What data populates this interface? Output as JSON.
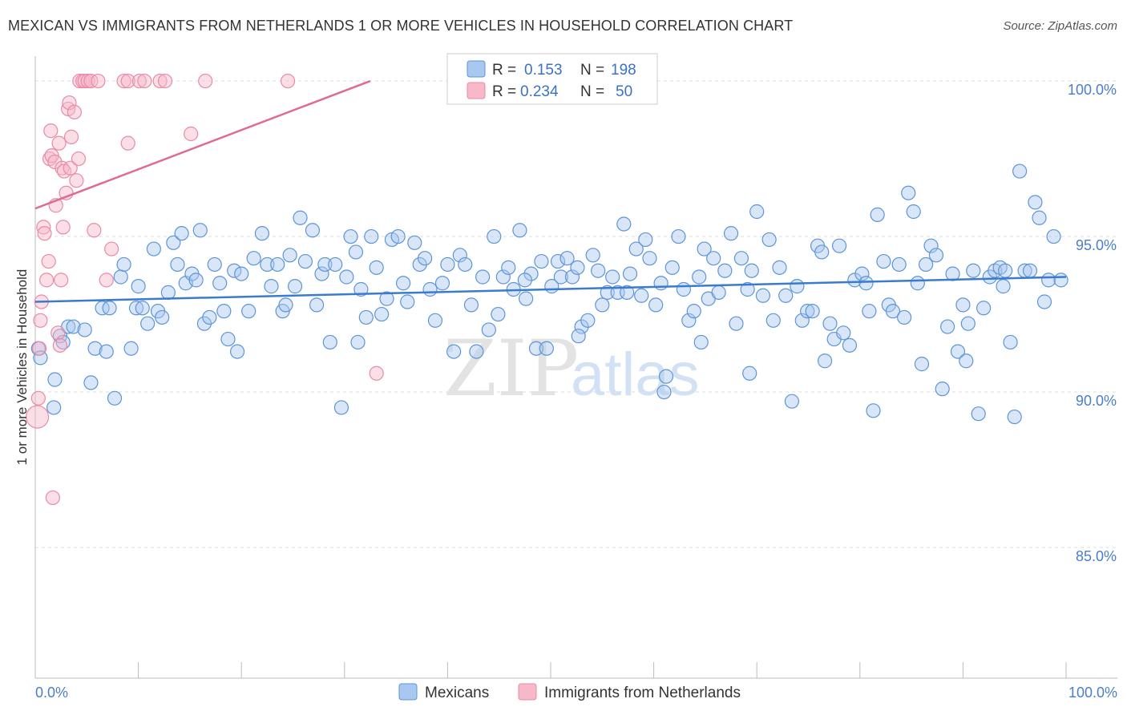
{
  "header": {
    "title": "MEXICAN VS IMMIGRANTS FROM NETHERLANDS 1 OR MORE VEHICLES IN HOUSEHOLD CORRELATION CHART",
    "source": "Source: ZipAtlas.com"
  },
  "watermark": {
    "zip": "ZIP",
    "atlas": "atlas"
  },
  "colors": {
    "blue_fill": "#a9c8ef",
    "blue_stroke": "#5e95d6",
    "blue_line": "#3a7bd0",
    "pink_fill": "#f7b8ca",
    "pink_stroke": "#e98aa6",
    "pink_line": "#e06a92",
    "tick_label": "#4a7ec9",
    "grid": "#dcdcdc"
  },
  "legend": {
    "rows": [
      {
        "r_label": "R =",
        "r_value": "0.153",
        "n_label": "N =",
        "n_value": "198"
      },
      {
        "r_label": "R =",
        "r_value": "0.234",
        "n_label": "N =",
        "n_value": "50"
      }
    ]
  },
  "bottom_legend": [
    {
      "label": "Mexicans",
      "series": "blue"
    },
    {
      "label": "Immigrants from Netherlands",
      "series": "pink"
    }
  ],
  "chart_data": {
    "type": "scatter",
    "title": "MEXICAN VS IMMIGRANTS FROM NETHERLANDS 1 OR MORE VEHICLES IN HOUSEHOLD CORRELATION CHART",
    "xlabel": "",
    "ylabel": "1 or more Vehicles in Household",
    "xlim": [
      0,
      100
    ],
    "ylim": [
      80.8,
      100.8
    ],
    "x_tick_labels": [
      "0.0%",
      "100.0%"
    ],
    "y_ticks": [
      85,
      90,
      95,
      100
    ],
    "y_tick_labels": [
      "85.0%",
      "90.0%",
      "95.0%",
      "100.0%"
    ],
    "grid": true,
    "series": [
      {
        "name": "Mexicans",
        "color": "blue",
        "r": 0.153,
        "n": 198,
        "trend": {
          "x": [
            0,
            100
          ],
          "y": [
            92.9,
            93.7
          ]
        },
        "points": [
          [
            0.3,
            91.4
          ],
          [
            0.5,
            91.1
          ],
          [
            1.8,
            89.5
          ],
          [
            1.9,
            90.4
          ],
          [
            2.4,
            91.8
          ],
          [
            2.7,
            91.6
          ],
          [
            3.2,
            92.1
          ],
          [
            3.7,
            92.1
          ],
          [
            4.8,
            92.0
          ],
          [
            5.4,
            90.3
          ],
          [
            5.8,
            91.4
          ],
          [
            6.5,
            92.7
          ],
          [
            6.9,
            91.3
          ],
          [
            7.2,
            92.7
          ],
          [
            7.7,
            89.8
          ],
          [
            8.3,
            93.7
          ],
          [
            8.6,
            94.1
          ],
          [
            9.3,
            91.4
          ],
          [
            9.8,
            92.7
          ],
          [
            10.0,
            93.4
          ],
          [
            10.4,
            92.7
          ],
          [
            10.9,
            92.2
          ],
          [
            11.5,
            94.6
          ],
          [
            11.9,
            92.6
          ],
          [
            12.3,
            92.4
          ],
          [
            12.9,
            93.2
          ],
          [
            13.4,
            94.8
          ],
          [
            13.8,
            94.1
          ],
          [
            14.2,
            95.1
          ],
          [
            14.6,
            93.5
          ],
          [
            15.2,
            93.8
          ],
          [
            15.6,
            93.6
          ],
          [
            16.0,
            95.2
          ],
          [
            16.4,
            92.2
          ],
          [
            16.9,
            92.4
          ],
          [
            17.4,
            94.1
          ],
          [
            17.9,
            93.5
          ],
          [
            18.3,
            92.6
          ],
          [
            18.7,
            91.7
          ],
          [
            19.3,
            93.9
          ],
          [
            20.0,
            93.8
          ],
          [
            20.7,
            92.6
          ],
          [
            21.2,
            94.3
          ],
          [
            22.0,
            95.1
          ],
          [
            22.5,
            94.1
          ],
          [
            22.9,
            93.4
          ],
          [
            23.5,
            94.1
          ],
          [
            24.0,
            92.6
          ],
          [
            24.3,
            92.8
          ],
          [
            24.7,
            94.4
          ],
          [
            25.2,
            93.4
          ],
          [
            25.7,
            95.6
          ],
          [
            26.2,
            94.2
          ],
          [
            26.9,
            95.2
          ],
          [
            27.3,
            92.8
          ],
          [
            27.8,
            93.8
          ],
          [
            28.1,
            94.1
          ],
          [
            28.6,
            91.6
          ],
          [
            29.1,
            94.1
          ],
          [
            29.7,
            89.5
          ],
          [
            30.2,
            93.7
          ],
          [
            30.6,
            95.0
          ],
          [
            31.1,
            94.5
          ],
          [
            31.6,
            93.3
          ],
          [
            32.1,
            92.4
          ],
          [
            32.6,
            95.0
          ],
          [
            33.1,
            94.0
          ],
          [
            33.6,
            92.5
          ],
          [
            34.1,
            93.0
          ],
          [
            34.6,
            94.9
          ],
          [
            35.2,
            95.0
          ],
          [
            35.7,
            93.5
          ],
          [
            36.1,
            92.9
          ],
          [
            36.8,
            94.8
          ],
          [
            37.3,
            94.1
          ],
          [
            37.8,
            94.3
          ],
          [
            38.3,
            93.3
          ],
          [
            38.8,
            92.3
          ],
          [
            39.5,
            93.5
          ],
          [
            40.0,
            94.1
          ],
          [
            40.6,
            91.3
          ],
          [
            41.2,
            94.4
          ],
          [
            41.7,
            94.1
          ],
          [
            42.3,
            92.8
          ],
          [
            42.8,
            91.3
          ],
          [
            43.4,
            93.7
          ],
          [
            44.0,
            92.0
          ],
          [
            44.5,
            95.0
          ],
          [
            44.9,
            92.5
          ],
          [
            45.4,
            93.7
          ],
          [
            45.9,
            94.0
          ],
          [
            46.4,
            93.3
          ],
          [
            47.0,
            95.2
          ],
          [
            47.6,
            93.0
          ],
          [
            48.1,
            93.8
          ],
          [
            48.6,
            91.4
          ],
          [
            49.1,
            94.2
          ],
          [
            49.6,
            91.4
          ],
          [
            50.1,
            93.4
          ],
          [
            50.7,
            94.2
          ],
          [
            51.0,
            93.7
          ],
          [
            51.6,
            94.3
          ],
          [
            52.1,
            93.7
          ],
          [
            52.6,
            94.0
          ],
          [
            53.0,
            92.1
          ],
          [
            53.6,
            92.3
          ],
          [
            54.1,
            94.4
          ],
          [
            54.6,
            93.9
          ],
          [
            55.0,
            92.8
          ],
          [
            55.5,
            93.2
          ],
          [
            56.0,
            93.7
          ],
          [
            56.5,
            93.2
          ],
          [
            57.1,
            95.4
          ],
          [
            57.7,
            93.8
          ],
          [
            58.3,
            94.6
          ],
          [
            58.8,
            93.1
          ],
          [
            59.2,
            94.9
          ],
          [
            59.6,
            94.3
          ],
          [
            60.2,
            92.8
          ],
          [
            60.7,
            93.5
          ],
          [
            61.2,
            90.5
          ],
          [
            61.8,
            94.0
          ],
          [
            62.4,
            95.0
          ],
          [
            62.9,
            93.3
          ],
          [
            63.4,
            92.3
          ],
          [
            63.9,
            92.6
          ],
          [
            64.4,
            93.7
          ],
          [
            64.9,
            94.6
          ],
          [
            65.3,
            93.0
          ],
          [
            65.8,
            94.3
          ],
          [
            66.3,
            93.2
          ],
          [
            66.9,
            93.9
          ],
          [
            67.5,
            95.1
          ],
          [
            68.0,
            92.2
          ],
          [
            68.5,
            94.3
          ],
          [
            69.1,
            93.3
          ],
          [
            69.5,
            93.9
          ],
          [
            70.0,
            95.8
          ],
          [
            70.6,
            93.1
          ],
          [
            71.2,
            94.9
          ],
          [
            71.6,
            92.3
          ],
          [
            72.2,
            94.0
          ],
          [
            72.8,
            93.1
          ],
          [
            73.4,
            89.7
          ],
          [
            73.9,
            93.4
          ],
          [
            74.4,
            92.3
          ],
          [
            74.9,
            92.6
          ],
          [
            75.4,
            92.6
          ],
          [
            75.9,
            94.7
          ],
          [
            76.3,
            94.5
          ],
          [
            77.1,
            92.2
          ],
          [
            77.5,
            91.7
          ],
          [
            78.0,
            94.7
          ],
          [
            78.4,
            91.9
          ],
          [
            79.0,
            91.5
          ],
          [
            79.5,
            93.6
          ],
          [
            80.2,
            93.8
          ],
          [
            80.6,
            93.5
          ],
          [
            81.3,
            89.4
          ],
          [
            81.7,
            95.7
          ],
          [
            82.3,
            94.2
          ],
          [
            82.8,
            92.8
          ],
          [
            83.2,
            92.6
          ],
          [
            83.8,
            94.1
          ],
          [
            84.3,
            92.4
          ],
          [
            84.7,
            96.4
          ],
          [
            85.2,
            95.8
          ],
          [
            86.0,
            90.9
          ],
          [
            86.4,
            94.1
          ],
          [
            86.9,
            94.7
          ],
          [
            87.4,
            94.4
          ],
          [
            88.0,
            90.1
          ],
          [
            88.5,
            92.1
          ],
          [
            89.0,
            93.8
          ],
          [
            89.5,
            91.3
          ],
          [
            90.0,
            92.8
          ],
          [
            90.5,
            92.2
          ],
          [
            91.0,
            93.9
          ],
          [
            91.5,
            89.3
          ],
          [
            92.0,
            92.7
          ],
          [
            92.6,
            93.7
          ],
          [
            93.1,
            93.9
          ],
          [
            93.6,
            94.0
          ],
          [
            94.1,
            93.9
          ],
          [
            94.6,
            91.6
          ],
          [
            95.0,
            89.2
          ],
          [
            95.5,
            97.1
          ],
          [
            96.0,
            93.9
          ],
          [
            96.5,
            93.9
          ],
          [
            97.0,
            96.1
          ],
          [
            97.4,
            95.6
          ],
          [
            97.9,
            92.9
          ],
          [
            98.3,
            93.6
          ],
          [
            98.8,
            95.0
          ],
          [
            99.5,
            93.6
          ],
          [
            19.6,
            91.3
          ],
          [
            31.3,
            91.6
          ],
          [
            47.5,
            93.6
          ],
          [
            52.7,
            91.8
          ],
          [
            57.4,
            93.2
          ],
          [
            61.0,
            90.0
          ],
          [
            64.6,
            91.6
          ],
          [
            69.3,
            90.6
          ],
          [
            76.6,
            91.0
          ],
          [
            80.9,
            92.6
          ],
          [
            85.6,
            93.5
          ],
          [
            90.3,
            91.0
          ],
          [
            93.9,
            93.4
          ]
        ]
      },
      {
        "name": "Immigrants from Netherlands",
        "color": "pink",
        "r": 0.234,
        "n": 50,
        "trend": {
          "x": [
            0,
            32.5
          ],
          "y": [
            95.9,
            100.0
          ]
        },
        "points": [
          [
            0.2,
            89.2
          ],
          [
            0.3,
            89.8
          ],
          [
            0.4,
            91.4
          ],
          [
            0.5,
            92.3
          ],
          [
            0.6,
            92.9
          ],
          [
            0.8,
            95.3
          ],
          [
            0.9,
            95.1
          ],
          [
            1.1,
            93.6
          ],
          [
            1.3,
            94.2
          ],
          [
            1.4,
            97.5
          ],
          [
            1.5,
            98.4
          ],
          [
            1.6,
            97.6
          ],
          [
            1.9,
            97.4
          ],
          [
            2.0,
            96.0
          ],
          [
            2.2,
            91.9
          ],
          [
            2.3,
            98.0
          ],
          [
            2.4,
            91.5
          ],
          [
            2.5,
            93.6
          ],
          [
            2.6,
            97.2
          ],
          [
            2.7,
            95.3
          ],
          [
            2.8,
            97.1
          ],
          [
            3.0,
            96.4
          ],
          [
            3.2,
            99.1
          ],
          [
            3.3,
            99.3
          ],
          [
            3.4,
            97.2
          ],
          [
            3.5,
            98.2
          ],
          [
            3.8,
            99.0
          ],
          [
            4.0,
            96.8
          ],
          [
            4.2,
            97.5
          ],
          [
            4.3,
            100.0
          ],
          [
            4.6,
            100.0
          ],
          [
            4.8,
            100.0
          ],
          [
            5.1,
            100.0
          ],
          [
            5.4,
            100.0
          ],
          [
            5.7,
            95.2
          ],
          [
            6.1,
            100.0
          ],
          [
            6.9,
            93.6
          ],
          [
            7.4,
            94.6
          ],
          [
            8.6,
            100.0
          ],
          [
            9.0,
            100.0
          ],
          [
            9.0,
            98.0
          ],
          [
            10.1,
            100.0
          ],
          [
            10.6,
            100.0
          ],
          [
            12.1,
            100.0
          ],
          [
            12.6,
            100.0
          ],
          [
            15.1,
            98.3
          ],
          [
            16.5,
            100.0
          ],
          [
            24.5,
            100.0
          ],
          [
            33.1,
            90.6
          ],
          [
            1.7,
            86.6
          ]
        ]
      }
    ]
  }
}
